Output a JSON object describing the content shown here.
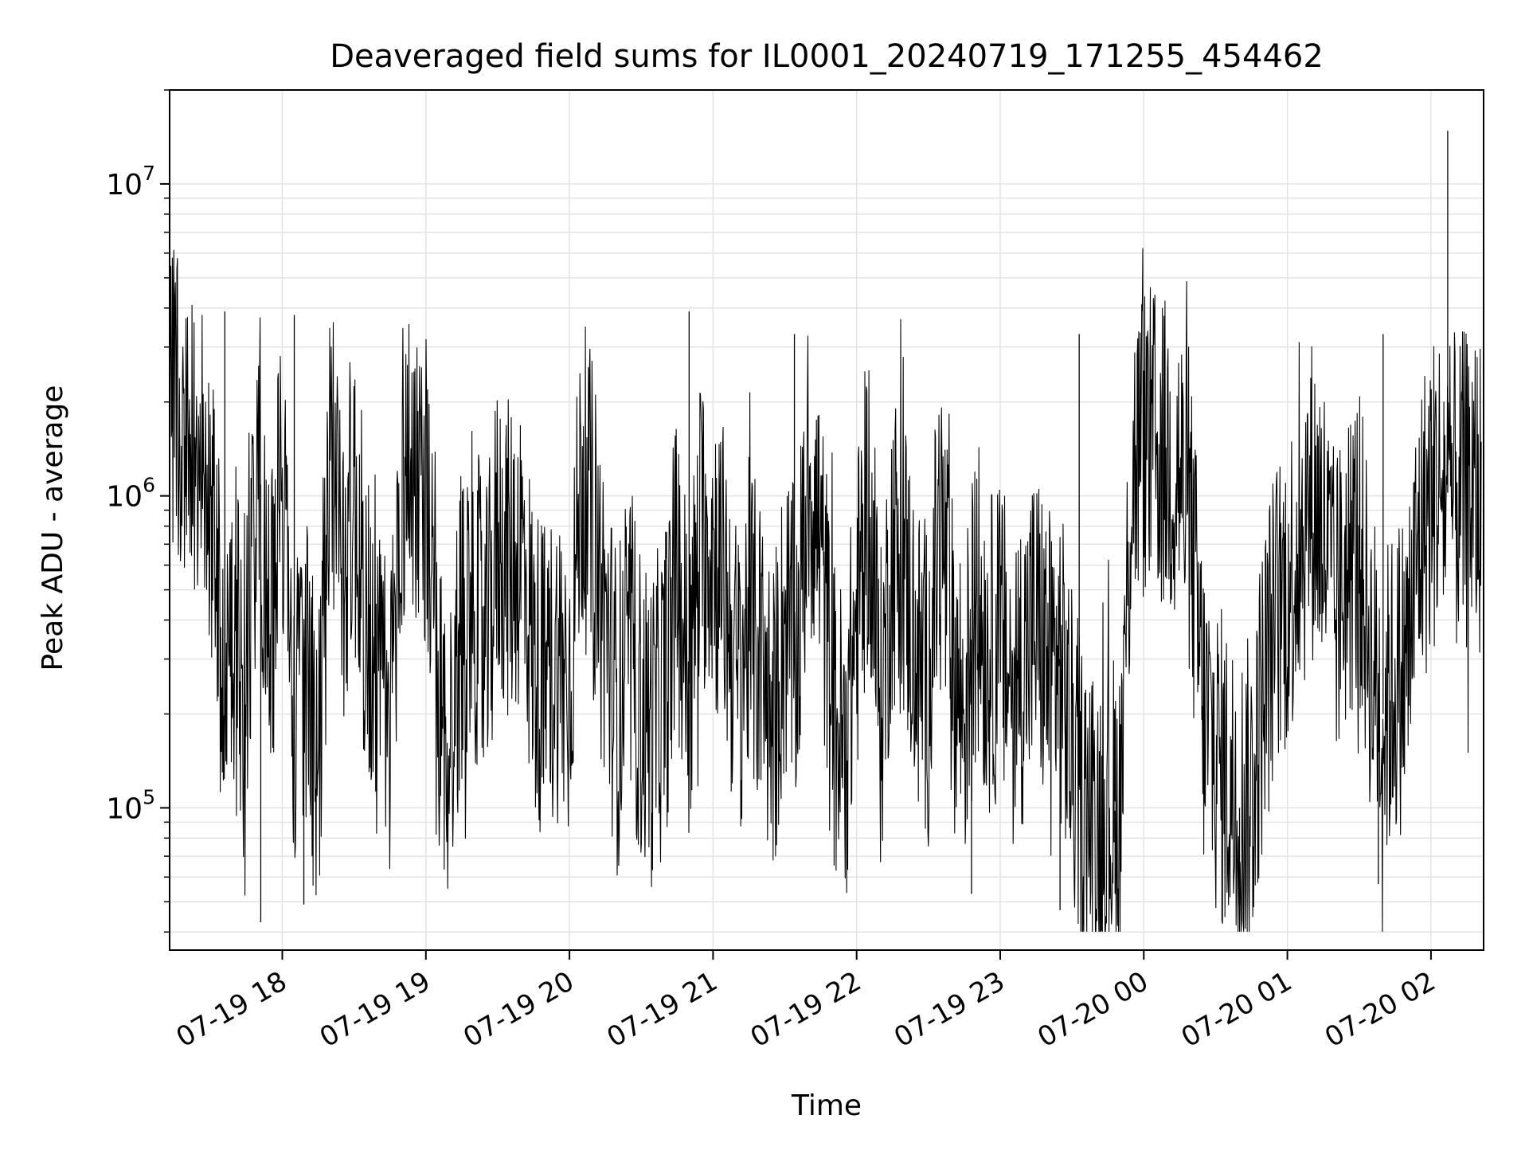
{
  "chart_data": {
    "type": "line",
    "title": "Deaveraged field sums for IL0001_20240719_171255_454462",
    "xlabel": "Time",
    "ylabel": "Peak ADU - average",
    "yscale": "log",
    "ylim": [
      35000,
      20000000
    ],
    "xlim": [
      "2024-07-19 17:12:55",
      "2024-07-20 02:22:00"
    ],
    "grid": true,
    "legend": "none",
    "line_color": "#000000",
    "x_tick_labels": [
      "07-19 18",
      "07-19 19",
      "07-19 20",
      "07-19 21",
      "07-19 22",
      "07-19 23",
      "07-20 00",
      "07-20 01",
      "07-20 02"
    ],
    "x_ticks": [
      "2024-07-19 18:00",
      "2024-07-19 19:00",
      "2024-07-19 20:00",
      "2024-07-19 21:00",
      "2024-07-19 22:00",
      "2024-07-19 23:00",
      "2024-07-20 00:00",
      "2024-07-20 01:00",
      "2024-07-20 02:00"
    ],
    "y_ticks": [
      100000,
      1000000,
      10000000
    ],
    "y_tick_labels": [
      {
        "base": "10",
        "exp": "5"
      },
      {
        "base": "10",
        "exp": "6"
      },
      {
        "base": "10",
        "exp": "7"
      }
    ],
    "series": [
      {
        "x": [
          "2024-07-19 17:13",
          "2024-07-19 17:20",
          "2024-07-19 17:25",
          "2024-07-19 17:30",
          "2024-07-19 17:35",
          "2024-07-19 17:40",
          "2024-07-19 17:45",
          "2024-07-19 17:50",
          "2024-07-19 17:55",
          "2024-07-19 18:00",
          "2024-07-19 18:05",
          "2024-07-19 18:10",
          "2024-07-19 18:15",
          "2024-07-19 18:20",
          "2024-07-19 18:25",
          "2024-07-19 18:30",
          "2024-07-19 18:35",
          "2024-07-19 18:40",
          "2024-07-19 18:45",
          "2024-07-19 18:50",
          "2024-07-19 18:55",
          "2024-07-19 19:00",
          "2024-07-19 19:05",
          "2024-07-19 19:10",
          "2024-07-19 19:15",
          "2024-07-19 19:20",
          "2024-07-19 19:25",
          "2024-07-19 19:30",
          "2024-07-19 19:35",
          "2024-07-19 19:40",
          "2024-07-19 19:45",
          "2024-07-19 19:50",
          "2024-07-19 19:55",
          "2024-07-19 20:00",
          "2024-07-19 20:05",
          "2024-07-19 20:10",
          "2024-07-19 20:15",
          "2024-07-19 20:20",
          "2024-07-19 20:25",
          "2024-07-19 20:30",
          "2024-07-19 20:35",
          "2024-07-19 20:40",
          "2024-07-19 20:45",
          "2024-07-19 20:50",
          "2024-07-19 20:55",
          "2024-07-19 21:00",
          "2024-07-19 21:05",
          "2024-07-19 21:10",
          "2024-07-19 21:15",
          "2024-07-19 21:20",
          "2024-07-19 21:25",
          "2024-07-19 21:30",
          "2024-07-19 21:35",
          "2024-07-19 21:40",
          "2024-07-19 21:45",
          "2024-07-19 21:50",
          "2024-07-19 21:55",
          "2024-07-19 22:00",
          "2024-07-19 22:05",
          "2024-07-19 22:10",
          "2024-07-19 22:15",
          "2024-07-19 22:20",
          "2024-07-19 22:25",
          "2024-07-19 22:30",
          "2024-07-19 22:35",
          "2024-07-19 22:40",
          "2024-07-19 22:45",
          "2024-07-19 22:50",
          "2024-07-19 22:55",
          "2024-07-19 23:00",
          "2024-07-19 23:05",
          "2024-07-19 23:10",
          "2024-07-19 23:15",
          "2024-07-19 23:20",
          "2024-07-19 23:25",
          "2024-07-19 23:30",
          "2024-07-19 23:35",
          "2024-07-19 23:40",
          "2024-07-19 23:45",
          "2024-07-19 23:50",
          "2024-07-19 23:55",
          "2024-07-20 00:00",
          "2024-07-20 00:05",
          "2024-07-20 00:10",
          "2024-07-20 00:15",
          "2024-07-20 00:20",
          "2024-07-20 00:25",
          "2024-07-20 00:30",
          "2024-07-20 00:35",
          "2024-07-20 00:40",
          "2024-07-20 00:45",
          "2024-07-20 00:50",
          "2024-07-20 00:55",
          "2024-07-20 01:00",
          "2024-07-20 01:05",
          "2024-07-20 01:10",
          "2024-07-20 01:15",
          "2024-07-20 01:20",
          "2024-07-20 01:25",
          "2024-07-20 01:30",
          "2024-07-20 01:35",
          "2024-07-20 01:40",
          "2024-07-20 01:45",
          "2024-07-20 01:50",
          "2024-07-20 01:55",
          "2024-07-20 02:00",
          "2024-07-20 02:04",
          "2024-07-20 02:08",
          "2024-07-20 02:12",
          "2024-07-20 02:16",
          "2024-07-20 02:21"
        ],
        "values": [
          2000000,
          1500000,
          1400000,
          1000000,
          300000,
          400000,
          250000,
          1500000,
          300000,
          1200000,
          180000,
          250000,
          150000,
          1500000,
          600000,
          1000000,
          400000,
          250000,
          180000,
          1200000,
          1300000,
          1100000,
          200000,
          150000,
          400000,
          500000,
          300000,
          750000,
          600000,
          700000,
          300000,
          250000,
          300000,
          250000,
          1200000,
          800000,
          400000,
          200000,
          350000,
          200000,
          180000,
          250000,
          600000,
          250000,
          800000,
          700000,
          500000,
          250000,
          400000,
          300000,
          180000,
          400000,
          300000,
          1200000,
          700000,
          200000,
          150000,
          400000,
          1000000,
          200000,
          700000,
          600000,
          300000,
          250000,
          900000,
          300000,
          200000,
          500000,
          300000,
          350000,
          250000,
          300000,
          400000,
          280000,
          300000,
          150000,
          100000,
          90000,
          95000,
          100000,
          1200000,
          1500000,
          1400000,
          1300000,
          1200000,
          700000,
          200000,
          150000,
          120000,
          100000,
          110000,
          250000,
          400000,
          500000,
          700000,
          1000000,
          800000,
          400000,
          600000,
          700000,
          300000,
          200000,
          250000,
          300000,
          700000,
          1000000,
          1100000,
          1000000,
          1000000,
          1050000,
          1000000
        ]
      }
    ],
    "peaks": [
      {
        "x": "2024-07-19 17:36",
        "y": 3900000
      },
      {
        "x": "2024-07-19 18:05",
        "y": 3800000
      },
      {
        "x": "2024-07-19 20:50",
        "y": 3900000
      },
      {
        "x": "2024-07-19 21:34",
        "y": 3300000
      },
      {
        "x": "2024-07-19 23:33",
        "y": 3300000
      },
      {
        "x": "2024-07-20 01:40",
        "y": 3300000
      },
      {
        "x": "2024-07-20 02:07",
        "y": 14800000
      }
    ],
    "troughs": [
      {
        "x": "2024-07-19 17:51",
        "y": 43000
      },
      {
        "x": "2024-07-19 18:09",
        "y": 49000
      },
      {
        "x": "2024-07-19 22:48",
        "y": 53000
      },
      {
        "x": "2024-07-19 23:25",
        "y": 47000
      },
      {
        "x": "2024-07-19 23:48",
        "y": 53000
      },
      {
        "x": "2024-07-20 00:40",
        "y": 49000
      },
      {
        "x": "2024-07-20 01:38",
        "y": 57000
      }
    ]
  }
}
